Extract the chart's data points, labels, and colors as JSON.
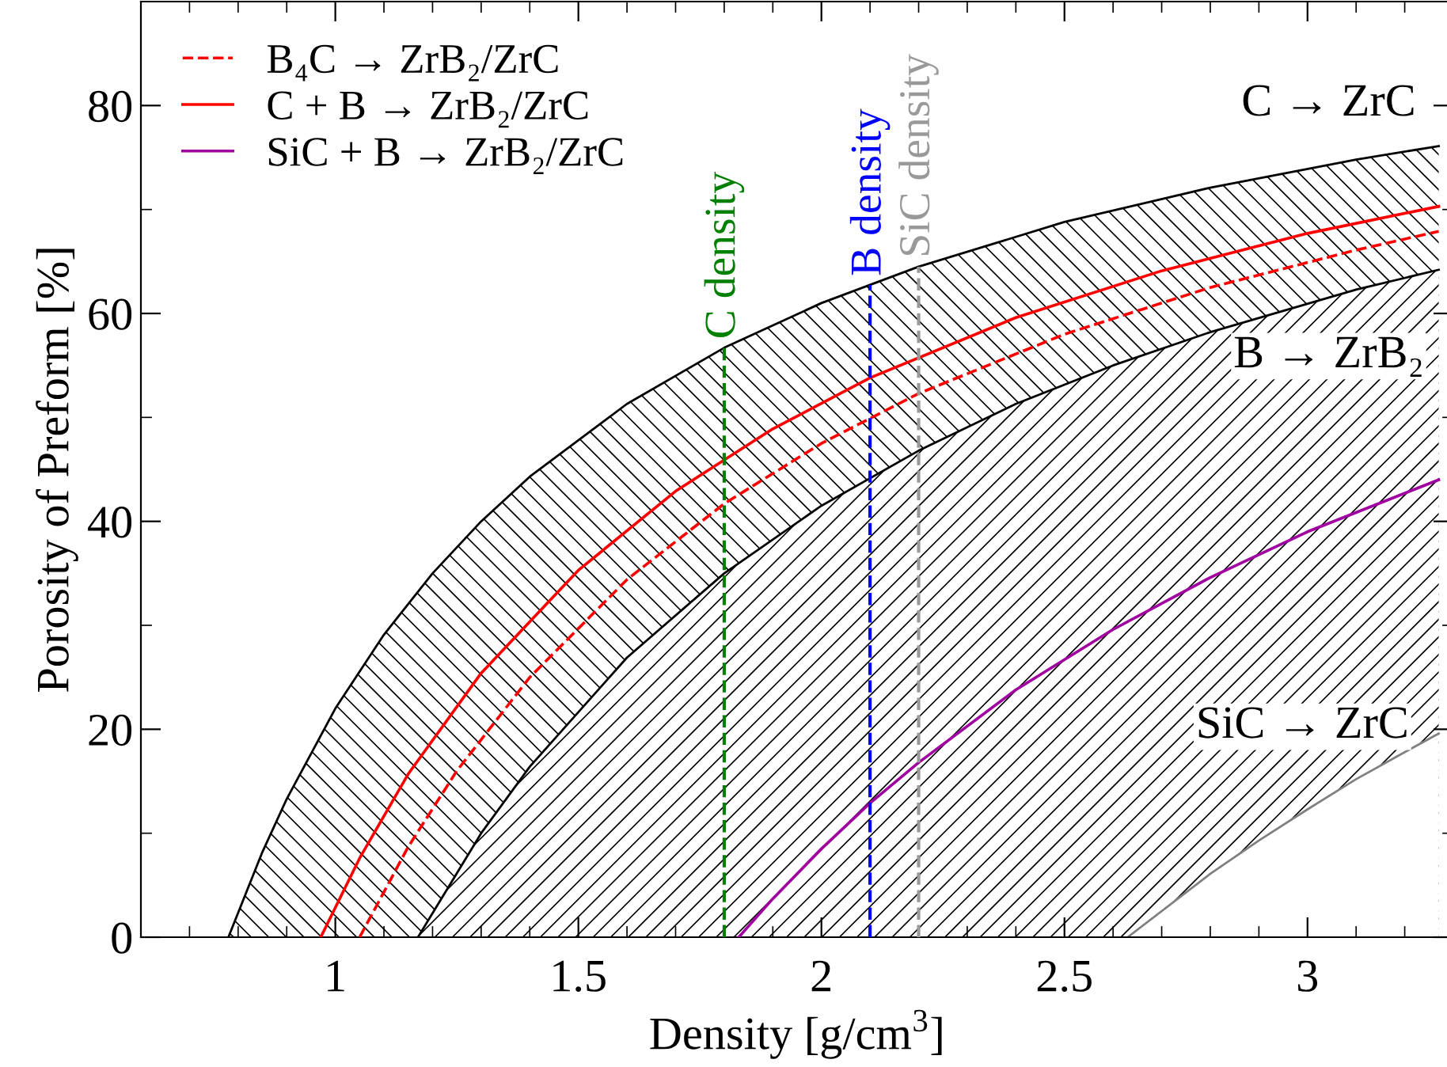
{
  "chart_data": {
    "type": "line",
    "xlabel": "Density [g/cm$^{3}$]",
    "ylabel": "Porosity of Preform [%]",
    "xlim": [
      0.6,
      3.3
    ],
    "ylim": [
      0,
      90
    ],
    "xticks": [
      {
        "value": 0.7,
        "label": null
      },
      {
        "value": 0.8,
        "label": null
      },
      {
        "value": 0.9,
        "label": null
      },
      1,
      {
        "value": 1.1,
        "label": null
      },
      {
        "value": 1.2,
        "label": null
      },
      {
        "value": 1.3,
        "label": null
      },
      {
        "value": 1.4,
        "label": null
      },
      1.5,
      {
        "value": 1.6,
        "label": null
      },
      {
        "value": 1.7,
        "label": null
      },
      {
        "value": 1.8,
        "label": null
      },
      {
        "value": 1.9,
        "label": null
      },
      2,
      {
        "value": 2.1,
        "label": null
      },
      {
        "value": 2.2,
        "label": null
      },
      {
        "value": 2.3,
        "label": null
      },
      {
        "value": 2.4,
        "label": null
      },
      2.5,
      {
        "value": 2.6,
        "label": null
      },
      {
        "value": 2.7,
        "label": null
      },
      {
        "value": 2.8,
        "label": null
      },
      {
        "value": 2.9,
        "label": null
      },
      3,
      {
        "value": 3.1,
        "label": null
      },
      {
        "value": 3.2,
        "label": null
      }
    ],
    "yticks": [
      0,
      {
        "value": 10,
        "label": null
      },
      20,
      {
        "value": 30,
        "label": null
      },
      40,
      {
        "value": 50,
        "label": null
      },
      60,
      {
        "value": 70,
        "label": null
      },
      80,
      {
        "value": 90,
        "label": null
      }
    ],
    "legend": "top left",
    "grid": false,
    "annotations": [
      "C → ZrC",
      "B → ZrB₂",
      "SiC → ZrC"
    ],
    "series": [
      {
        "type": "area",
        "color": "#000000",
        "x": [
          0.78,
          0.85,
          0.9,
          1.0,
          1.1,
          1.2,
          1.3,
          1.4,
          1.6,
          1.8,
          2.0,
          2.2,
          2.5,
          2.8,
          3.1,
          3.27
        ],
        "values": [
          0,
          8.2,
          13.3,
          22.0,
          29.1,
          35.0,
          40.0,
          44.3,
          51.3,
          56.7,
          61.0,
          64.5,
          68.8,
          72.1,
          74.8,
          76.1
        ]
      },
      {
        "type": "area",
        "color": "#000000",
        "x": [
          1.17,
          1.3,
          1.4,
          1.6,
          1.8,
          2.0,
          2.2,
          2.4,
          2.6,
          2.8,
          3.1,
          3.27
        ],
        "values": [
          0,
          10.0,
          16.4,
          26.9,
          35.0,
          41.5,
          46.8,
          51.3,
          55.0,
          58.2,
          62.3,
          64.2
        ]
      },
      {
        "type": "area",
        "color": "#808080",
        "x": [
          2.63,
          2.8,
          2.9,
          3.0,
          3.1,
          3.2,
          3.27
        ],
        "values": [
          0,
          6.1,
          9.3,
          12.3,
          15.2,
          17.8,
          19.6
        ]
      },
      {
        "name": "B₄C → ZrB₂/ZrC",
        "line_style": "dashed",
        "color": "#ff0000",
        "x": [
          1.05,
          1.15,
          1.25,
          1.4,
          1.6,
          1.8,
          2.0,
          2.2,
          2.5,
          2.8,
          3.1,
          3.27
        ],
        "values": [
          0,
          8.7,
          16.0,
          25.0,
          34.4,
          41.7,
          47.5,
          52.3,
          58.0,
          62.5,
          66.1,
          67.9
        ]
      },
      {
        "name": "C + B → ZrB₂/ZrC",
        "line_style": "solid",
        "color": "#ff0000",
        "x": [
          0.97,
          1.05,
          1.15,
          1.3,
          1.5,
          1.7,
          1.9,
          2.1,
          2.4,
          2.7,
          3.0,
          3.27
        ],
        "values": [
          0,
          7.6,
          15.7,
          25.4,
          35.3,
          42.9,
          48.9,
          53.8,
          59.6,
          64.1,
          67.7,
          70.3
        ]
      },
      {
        "name": "SiC + B → ZrB₂/ZrC",
        "line_style": "solid",
        "color": "#a000a0",
        "x": [
          1.83,
          1.9,
          2.0,
          2.1,
          2.2,
          2.4,
          2.6,
          2.8,
          3.0,
          3.27
        ],
        "values": [
          0,
          3.7,
          8.5,
          12.9,
          16.8,
          23.8,
          29.6,
          34.6,
          39.0,
          44.0
        ]
      }
    ],
    "ref_lines": [
      {
        "axis": "x",
        "value": 1.8,
        "label": "C density",
        "color": "#008000",
        "line_style": "dashed"
      },
      {
        "axis": "x",
        "value": 2.1,
        "label": "B density",
        "color": "#0000ff",
        "line_style": "dashed"
      },
      {
        "axis": "x",
        "value": 2.2,
        "label": "SiC density",
        "color": "#999999",
        "line_style": "dashed"
      }
    ]
  }
}
